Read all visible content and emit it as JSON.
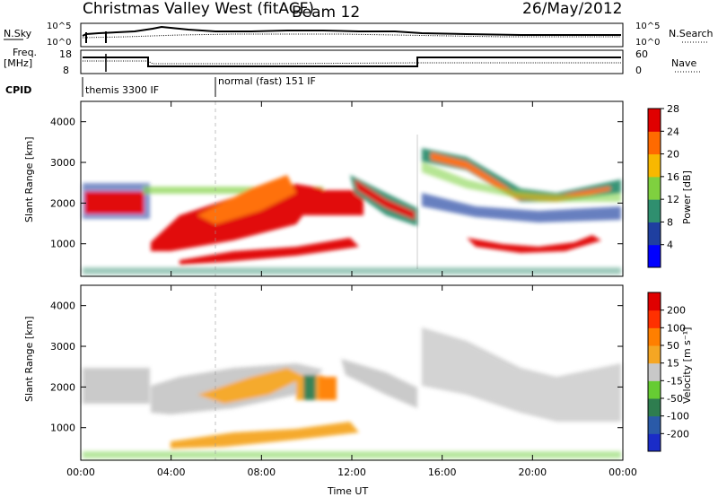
{
  "header": {
    "station": "Christmas Valley West (fitACF)",
    "beam": "Beam 12",
    "date": "26/May/2012"
  },
  "top_panel": {
    "nsky_label": "N.Sky",
    "nsky_ticks": [
      "10^5",
      "10^0"
    ],
    "nsearch_label": "N.Search",
    "nsearch_ticks": [
      "10^5",
      "10^0"
    ],
    "freq_label_line1": "Freq.",
    "freq_label_line2": "[MHz]",
    "freq_ticks": [
      "18",
      "8"
    ],
    "nave_label": "Nave",
    "nave_ticks": [
      "60",
      "0"
    ],
    "cpid_label": "CPID",
    "cpid_segments": [
      "themis 3300 IF",
      "normal (fast) 151 IF"
    ]
  },
  "chart_data": [
    {
      "type": "heatmap",
      "name": "power",
      "ylabel": "Slant Range [km]",
      "xlabel": "",
      "y_ticks": [
        1000,
        2000,
        3000,
        4000
      ],
      "ylim": [
        200,
        4500
      ],
      "colorbar_label": "Power [dB]",
      "colorbar_ticks": [
        "4",
        "8",
        "12",
        "16",
        "20",
        "24",
        "28"
      ],
      "colorbar_colors": [
        "#0000ff",
        "#1f3fa0",
        "#2f8f6f",
        "#7fd03f",
        "#f8b800",
        "#ff6a00",
        "#e00000"
      ]
    },
    {
      "type": "heatmap",
      "name": "velocity",
      "ylabel": "Slant Range [km]",
      "xlabel": "Time UT",
      "x_ticks": [
        "00:00",
        "04:00",
        "08:00",
        "12:00",
        "16:00",
        "20:00",
        "00:00"
      ],
      "y_ticks": [
        1000,
        2000,
        3000,
        4000
      ],
      "ylim": [
        200,
        4500
      ],
      "colorbar_label": "Velocity [m s⁻¹]",
      "colorbar_ticks": [
        "200",
        "100",
        "50",
        "15",
        "-15",
        "-50",
        "-100",
        "-200"
      ],
      "colorbar_colors": [
        "#1a2cc8",
        "#2a5aa8",
        "#2e7d4f",
        "#66cc33",
        "#c8c8c8",
        "#f5a623",
        "#ff7f00",
        "#ff3000",
        "#e00000"
      ]
    }
  ]
}
